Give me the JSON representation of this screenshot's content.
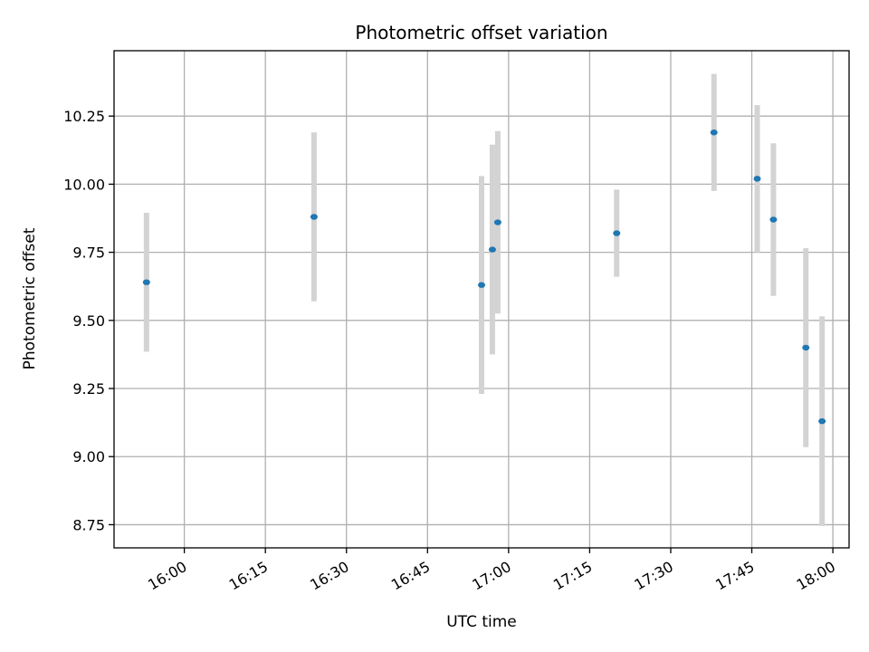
{
  "chart_data": {
    "type": "scatter",
    "title": "Photometric offset variation",
    "xlabel": "UTC time",
    "ylabel": "Photometric offset",
    "x_axis": "time",
    "xlim": [
      "15:47",
      "18:03"
    ],
    "ylim": [
      8.665,
      10.49
    ],
    "x_ticks": [
      "16:00",
      "16:15",
      "16:30",
      "16:45",
      "17:00",
      "17:15",
      "17:30",
      "17:45",
      "18:00"
    ],
    "y_ticks": [
      "8.75",
      "9.00",
      "9.25",
      "9.50",
      "9.75",
      "10.00",
      "10.25"
    ],
    "grid": true,
    "marker_color": "#1f77b4",
    "errorbar_color": "#d3d3d3",
    "points": [
      {
        "time": "15:53",
        "y": 9.64,
        "err": 0.255
      },
      {
        "time": "16:24",
        "y": 9.88,
        "err": 0.31
      },
      {
        "time": "16:55",
        "y": 9.63,
        "err": 0.4
      },
      {
        "time": "16:57",
        "y": 9.76,
        "err": 0.385
      },
      {
        "time": "16:58",
        "y": 9.86,
        "err": 0.335
      },
      {
        "time": "17:20",
        "y": 9.82,
        "err": 0.16
      },
      {
        "time": "17:38",
        "y": 10.19,
        "err": 0.215
      },
      {
        "time": "17:46",
        "y": 10.02,
        "err": 0.27
      },
      {
        "time": "17:49",
        "y": 9.87,
        "err": 0.28
      },
      {
        "time": "17:55",
        "y": 9.4,
        "err": 0.365
      },
      {
        "time": "17:58",
        "y": 9.13,
        "err": 0.385
      }
    ]
  }
}
